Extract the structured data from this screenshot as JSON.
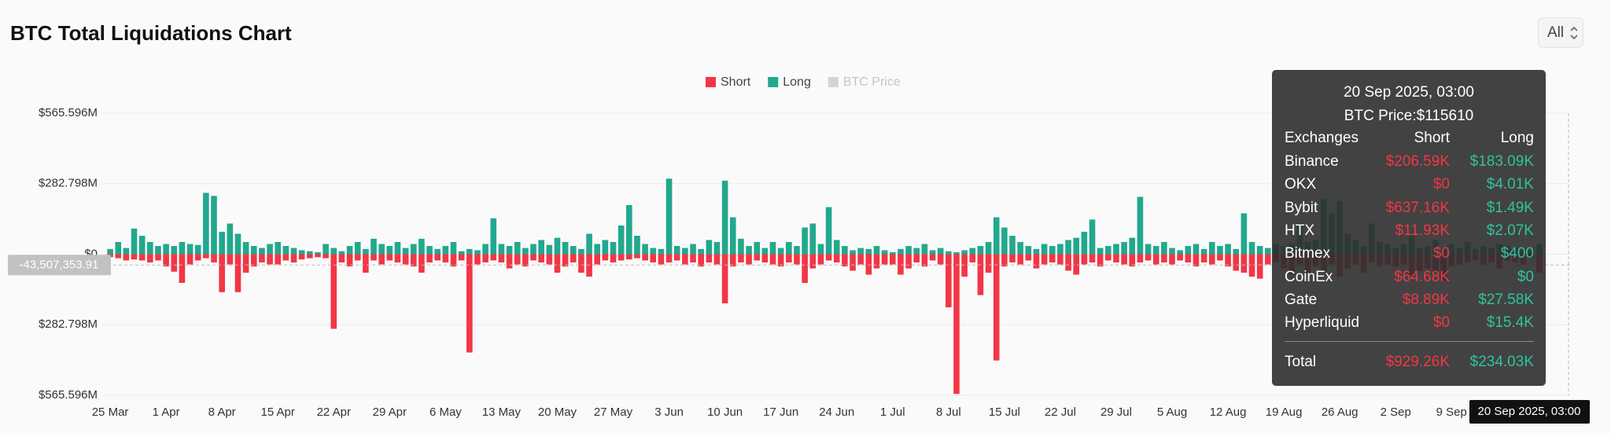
{
  "controls": {
    "range_select": "All"
  },
  "chart_data": {
    "type": "bar",
    "title": "BTC Total Liquidations Chart",
    "categories": [
      "25 Mar",
      null,
      null,
      null,
      null,
      null,
      null,
      "1 Apr",
      null,
      null,
      null,
      null,
      null,
      null,
      "8 Apr",
      null,
      null,
      null,
      null,
      null,
      null,
      "15 Apr",
      null,
      null,
      null,
      null,
      null,
      null,
      "22 Apr",
      null,
      null,
      null,
      null,
      null,
      null,
      "29 Apr",
      null,
      null,
      null,
      null,
      null,
      null,
      "6 May",
      null,
      null,
      null,
      null,
      null,
      null,
      "13 May",
      null,
      null,
      null,
      null,
      null,
      null,
      "20 May",
      null,
      null,
      null,
      null,
      null,
      null,
      "27 May",
      null,
      null,
      null,
      null,
      null,
      null,
      "3 Jun",
      null,
      null,
      null,
      null,
      null,
      null,
      "10 Jun",
      null,
      null,
      null,
      null,
      null,
      null,
      "17 Jun",
      null,
      null,
      null,
      null,
      null,
      null,
      "24 Jun",
      null,
      null,
      null,
      null,
      null,
      null,
      "1 Jul",
      null,
      null,
      null,
      null,
      null,
      null,
      "8 Jul",
      null,
      null,
      null,
      null,
      null,
      null,
      "15 Jul",
      null,
      null,
      null,
      null,
      null,
      null,
      "22 Jul",
      null,
      null,
      null,
      null,
      null,
      null,
      "29 Jul",
      null,
      null,
      null,
      null,
      null,
      null,
      "5 Aug",
      null,
      null,
      null,
      null,
      null,
      null,
      "12 Aug",
      null,
      null,
      null,
      null,
      null,
      null,
      "19 Aug",
      null,
      null,
      null,
      null,
      null,
      null,
      "26 Aug",
      null,
      null,
      null,
      null,
      null,
      null,
      "2 Sep",
      null,
      null,
      null,
      null,
      null,
      null,
      "9 Sep",
      null,
      null,
      null,
      null,
      null,
      null,
      null,
      null,
      null,
      null,
      null
    ],
    "series": [
      {
        "name": "Short",
        "color": "#f23645",
        "values": [
          -12,
          -16,
          -25,
          -21,
          -25,
          -33,
          -25,
          -49,
          -70,
          -115,
          -41,
          -25,
          -16,
          -33,
          -152,
          -41,
          -152,
          -74,
          -49,
          -33,
          -41,
          -41,
          -25,
          -33,
          -21,
          -16,
          -12,
          -16,
          -299,
          -33,
          -49,
          -25,
          -74,
          -25,
          -41,
          -25,
          -33,
          -41,
          -49,
          -74,
          -33,
          -25,
          -33,
          -49,
          -25,
          -394,
          -41,
          -33,
          -25,
          -33,
          -57,
          -41,
          -49,
          -25,
          -33,
          -41,
          -74,
          -49,
          -33,
          -74,
          -90,
          -41,
          -25,
          -33,
          -25,
          -21,
          -16,
          -25,
          -33,
          -41,
          -33,
          -25,
          -41,
          -33,
          -49,
          -33,
          -41,
          -197,
          -49,
          -33,
          -41,
          -25,
          -33,
          -41,
          -49,
          -33,
          -41,
          -115,
          -57,
          -41,
          -25,
          -33,
          -49,
          -66,
          -41,
          -82,
          -57,
          -41,
          -41,
          -82,
          -57,
          -33,
          -49,
          -25,
          -41,
          -213,
          -560,
          -90,
          -33,
          -164,
          -74,
          -426,
          -49,
          -33,
          -41,
          -25,
          -57,
          -41,
          -33,
          -41,
          -66,
          -82,
          -41,
          -33,
          -49,
          -25,
          -33,
          -41,
          -49,
          -33,
          -25,
          -41,
          -33,
          -41,
          -25,
          -33,
          -49,
          -33,
          -41,
          -25,
          -49,
          -66,
          -74,
          -90,
          -98,
          -41,
          -33,
          -57,
          -82,
          -41,
          -74,
          -49,
          -66,
          -41,
          -90,
          -57,
          -41,
          -74,
          -33,
          -49,
          -41,
          -49,
          -41,
          -82,
          -66,
          -57,
          -74,
          -107,
          -49,
          -41,
          -33,
          -25,
          -41,
          -33,
          -57,
          -25,
          -33,
          -41,
          -16,
          -74
        ]
      },
      {
        "name": "Long",
        "color": "#22a88e",
        "values": [
          21,
          49,
          25,
          103,
          74,
          49,
          33,
          41,
          33,
          49,
          41,
          37,
          246,
          234,
          90,
          123,
          82,
          49,
          33,
          25,
          41,
          49,
          33,
          25,
          16,
          12,
          8,
          41,
          25,
          12,
          33,
          49,
          21,
          62,
          41,
          33,
          49,
          25,
          41,
          62,
          33,
          21,
          33,
          49,
          12,
          21,
          16,
          41,
          144,
          41,
          33,
          49,
          25,
          41,
          57,
          37,
          66,
          49,
          33,
          21,
          82,
          41,
          57,
          49,
          115,
          197,
          74,
          41,
          25,
          21,
          303,
          33,
          25,
          41,
          21,
          57,
          49,
          295,
          148,
          62,
          33,
          49,
          25,
          49,
          25,
          49,
          33,
          107,
          123,
          41,
          189,
          57,
          33,
          16,
          25,
          21,
          33,
          16,
          8,
          21,
          33,
          25,
          41,
          16,
          25,
          12,
          8,
          16,
          25,
          33,
          49,
          148,
          107,
          74,
          49,
          33,
          21,
          41,
          33,
          41,
          57,
          66,
          90,
          139,
          25,
          33,
          41,
          49,
          66,
          230,
          41,
          33,
          49,
          25,
          16,
          33,
          41,
          21,
          49,
          33,
          41,
          21,
          164,
          49,
          33,
          25,
          41,
          33,
          41,
          123,
          49,
          57,
          221,
          164,
          213,
          82,
          57,
          33,
          123,
          49,
          41,
          25,
          41,
          74,
          25,
          33,
          57,
          25,
          41,
          25,
          49,
          21,
          33,
          25,
          41,
          33,
          25,
          16,
          12,
          41
        ]
      }
    ],
    "hidden_series": [
      {
        "name": "BTC Price",
        "color": "#d4d4d4"
      }
    ],
    "ylim": [
      -565.596,
      565.596
    ],
    "yticks": [
      {
        "value": -565.596,
        "label": "$565.596M"
      },
      {
        "value": -282.798,
        "label": "$282.798M"
      },
      {
        "value": 0,
        "label": "$0"
      },
      {
        "value": 282.798,
        "label": "$282.798M"
      },
      {
        "value": 565.596,
        "label": "$565.596M"
      }
    ],
    "grid": true,
    "legend_position": "top",
    "crosshair": {
      "y": {
        "value": -43.50735391,
        "label": "-43,507,353.91"
      },
      "x_label": "20 Sep 2025, 03:00"
    }
  },
  "tooltip": {
    "title": "20 Sep 2025, 03:00",
    "price": "BTC Price:$115610",
    "columns": [
      "Exchanges",
      "Short",
      "Long"
    ],
    "rows": [
      [
        "Binance",
        "$206.59K",
        "$183.09K"
      ],
      [
        "OKX",
        "$0",
        "$4.01K"
      ],
      [
        "Bybit",
        "$637.16K",
        "$1.49K"
      ],
      [
        "HTX",
        "$11.93K",
        "$2.07K"
      ],
      [
        "Bitmex",
        "$0",
        "$400"
      ],
      [
        "CoinEx",
        "$64.68K",
        "$0"
      ],
      [
        "Gate",
        "$8.89K",
        "$27.58K"
      ],
      [
        "Hyperliquid",
        "$0",
        "$15.4K"
      ]
    ],
    "total": [
      "Total",
      "$929.26K",
      "$234.03K"
    ]
  }
}
